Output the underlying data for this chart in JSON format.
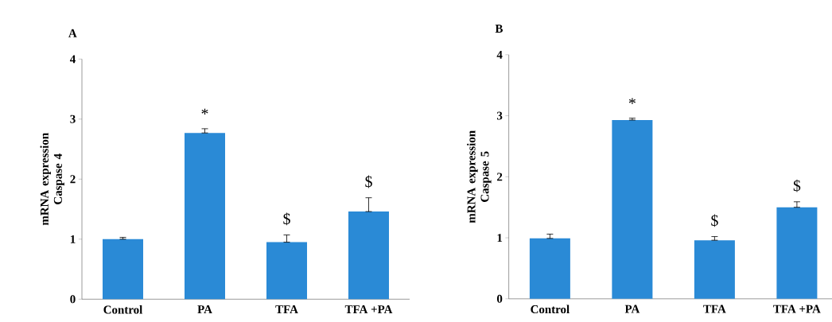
{
  "chart_data": [
    {
      "type": "bar",
      "title": "A",
      "ylabel": "mRNA expression Caspase 4",
      "categories": [
        "Control",
        "PA",
        "TFA",
        "TFA +PA"
      ],
      "values": [
        1.0,
        2.77,
        0.95,
        1.46
      ],
      "errors": [
        [
          1.0,
          1.03
        ],
        [
          2.77,
          2.84
        ],
        [
          0.95,
          1.07
        ],
        [
          1.46,
          1.69
        ]
      ],
      "color": "#2a8ad6",
      "ylim": [
        0,
        4
      ],
      "yticks": [
        0,
        1,
        2,
        3,
        4
      ],
      "value_labels": [
        null,
        "*",
        "$",
        "$"
      ]
    },
    {
      "type": "bar",
      "title": "B",
      "ylabel": "mRNA expression Caspase 5",
      "categories": [
        "Control",
        "PA",
        "TFA",
        "TFA +PA"
      ],
      "values": [
        0.99,
        2.93,
        0.96,
        1.5
      ],
      "errors": [
        [
          0.99,
          1.06
        ],
        [
          2.93,
          2.96
        ],
        [
          0.96,
          1.02
        ],
        [
          1.5,
          1.59
        ]
      ],
      "color": "#2a8ad6",
      "ylim": [
        0,
        4
      ],
      "yticks": [
        0,
        1,
        2,
        3,
        4
      ],
      "value_labels": [
        null,
        "*",
        "$",
        "$"
      ]
    }
  ]
}
